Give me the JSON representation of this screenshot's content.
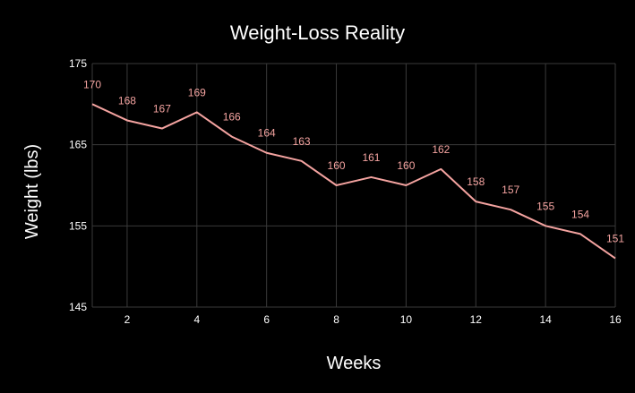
{
  "chart_data": {
    "type": "line",
    "title": "Weight-Loss Reality",
    "xlabel": "Weeks",
    "ylabel": "Weight (lbs)",
    "xlim": [
      1,
      16
    ],
    "ylim": [
      145,
      175
    ],
    "x_ticks": [
      2,
      4,
      6,
      8,
      10,
      12,
      14,
      16
    ],
    "y_ticks": [
      145,
      155,
      165,
      175
    ],
    "grid": true,
    "legend": "none",
    "colors": {
      "background": "#000000",
      "grid": "#3a3a3a",
      "line": "#f4a3a0",
      "text": "#ffffff"
    },
    "series": [
      {
        "x": [
          1,
          2,
          3,
          4,
          5,
          6,
          7,
          8,
          9,
          10,
          11,
          12,
          13,
          14,
          15,
          16
        ],
        "values": [
          170,
          168,
          167,
          169,
          166,
          164,
          163,
          160,
          161,
          160,
          162,
          158,
          157,
          155,
          154,
          151
        ]
      }
    ]
  }
}
